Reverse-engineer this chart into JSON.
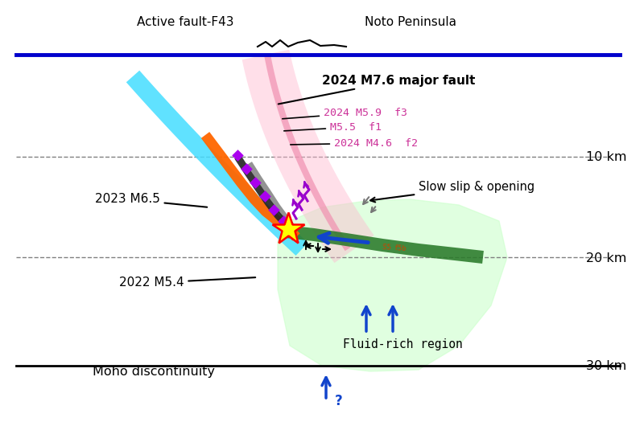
{
  "bg_color": "#ffffff",
  "fig_width": 8.0,
  "fig_height": 5.3,
  "labels": {
    "active_fault": "Active fault-F43",
    "noto": "Noto Peninsula",
    "major_fault": "2024 M7.6 major fault",
    "f3": "2024 M5.9  f3",
    "f1": "M5.5  f1",
    "f2": "2024 M4.6  f2",
    "m65": "2023 M6.5",
    "m54": "2022 M5.4",
    "slow_slip": "Slow slip & opening",
    "fluid_rich": "Fluid-rich region",
    "moho": "Moho discontinuity",
    "km10": "10 km",
    "km20": "20 km",
    "km30": "30 km"
  },
  "colors": {
    "blue_line": "#0000cc",
    "cyan_fault": "#44ddff",
    "pink_wide": "#ffb8d0",
    "pink_narrow": "#f090b0",
    "orange_fault": "#ff6600",
    "dark_fault": "#222222",
    "gray_fault": "#666666",
    "green_region": "#ccffcc",
    "green_band": "#2a7a2a",
    "purple": "#9900cc",
    "purple_diamond": "#aa00ee",
    "blue_arrow": "#1144cc",
    "gray_arrow": "#777777",
    "label_pink": "#cc3399",
    "black": "#000000"
  }
}
